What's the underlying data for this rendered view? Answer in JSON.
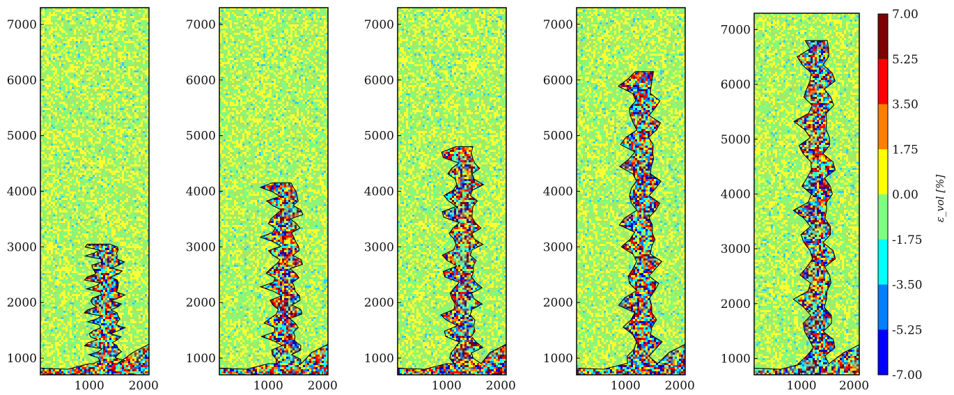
{
  "chart_data": {
    "type": "heatmap",
    "description_units": "volumetric strain field snapshots",
    "panels": [
      {
        "index": 1,
        "contour_top_y": 3050
      },
      {
        "index": 2,
        "contour_top_y": 4150
      },
      {
        "index": 3,
        "contour_top_y": 4800
      },
      {
        "index": 4,
        "contour_top_y": 6150
      },
      {
        "index": 5,
        "contour_top_y": 6800
      }
    ],
    "x_ticks": [
      "1000",
      "2000"
    ],
    "x_tick_values": [
      1000,
      2000
    ],
    "y_ticks": [
      "1000",
      "2000",
      "3000",
      "4000",
      "5000",
      "6000",
      "7000"
    ],
    "y_tick_values": [
      1000,
      2000,
      3000,
      4000,
      5000,
      6000,
      7000
    ],
    "xlim": [
      100,
      2100
    ],
    "ylim": [
      700,
      7300
    ],
    "colorbar": {
      "label": "ε_vol [%]",
      "ticks": [
        "7.00",
        "5.25",
        "3.50",
        "1.75",
        "0.00",
        "-1.75",
        "-3.50",
        "-5.25",
        "-7.00"
      ],
      "range": [
        -7.0,
        7.0
      ],
      "bands": [
        "#7f0000",
        "#ff0000",
        "#ff7f00",
        "#ffff00",
        "#7fff7f",
        "#00ffff",
        "#007fff",
        "#0000ff"
      ]
    },
    "grid": false
  }
}
